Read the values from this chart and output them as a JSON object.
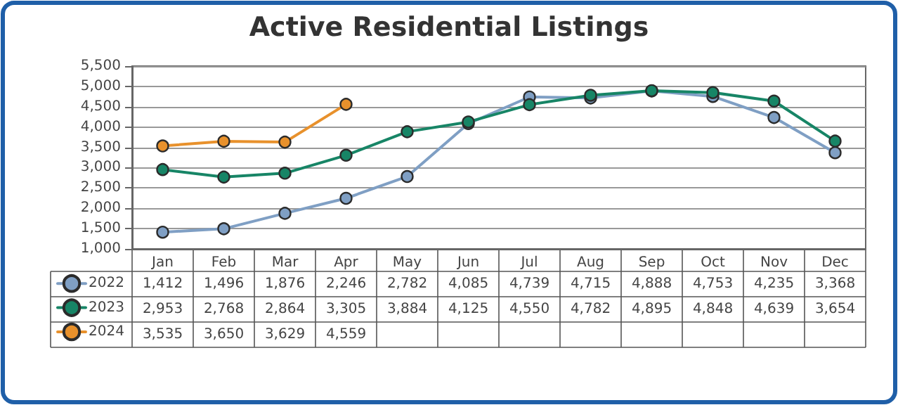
{
  "chart_data": {
    "type": "line",
    "title": "Active Residential Listings",
    "categories": [
      "Jan",
      "Feb",
      "Mar",
      "Apr",
      "May",
      "Jun",
      "Jul",
      "Aug",
      "Sep",
      "Oct",
      "Nov",
      "Dec"
    ],
    "series": [
      {
        "name": "2022",
        "color": "#7f9fc4",
        "values": [
          1412,
          1496,
          1876,
          2246,
          2782,
          4085,
          4739,
          4715,
          4888,
          4753,
          4235,
          3368
        ],
        "value_labels": [
          "1,412",
          "1,496",
          "1,876",
          "2,246",
          "2,782",
          "4,085",
          "4,739",
          "4,715",
          "4,888",
          "4,753",
          "4,235",
          "3,368"
        ]
      },
      {
        "name": "2023",
        "color": "#178566",
        "values": [
          2953,
          2768,
          2864,
          3305,
          3884,
          4125,
          4550,
          4782,
          4895,
          4848,
          4639,
          3654
        ],
        "value_labels": [
          "2,953",
          "2,768",
          "2,864",
          "3,305",
          "3,884",
          "4,125",
          "4,550",
          "4,782",
          "4,895",
          "4,848",
          "4,639",
          "3,654"
        ]
      },
      {
        "name": "2024",
        "color": "#e8912c",
        "values": [
          3535,
          3650,
          3629,
          4559,
          null,
          null,
          null,
          null,
          null,
          null,
          null,
          null
        ],
        "value_labels": [
          "3,535",
          "3,650",
          "3,629",
          "4,559",
          null,
          null,
          null,
          null,
          null,
          null,
          null,
          null
        ]
      }
    ],
    "ylim": [
      1000,
      5500
    ],
    "yticks": [
      {
        "value": 1000,
        "label": "1,000"
      },
      {
        "value": 1500,
        "label": "1,500"
      },
      {
        "value": 2000,
        "label": "2,000"
      },
      {
        "value": 2500,
        "label": "2,500"
      },
      {
        "value": 3000,
        "label": "3,000"
      },
      {
        "value": 3500,
        "label": "3,500"
      },
      {
        "value": 4000,
        "label": "4,000"
      },
      {
        "value": 4500,
        "label": "4,500"
      },
      {
        "value": 5000,
        "label": "5,000"
      },
      {
        "value": 5500,
        "label": "5,500"
      }
    ],
    "grid": "y",
    "legend": "bottom left",
    "marker": "circle",
    "line_style": "solid"
  }
}
